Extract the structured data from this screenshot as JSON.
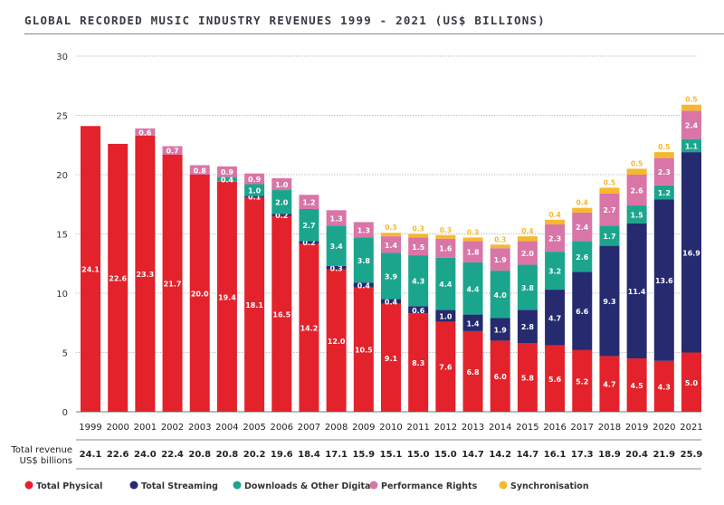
{
  "chart_data": {
    "type": "bar",
    "stacked": true,
    "title": "GLOBAL RECORDED MUSIC INDUSTRY REVENUES 1999 - 2021 (US$ BILLIONS)",
    "ylim": [
      0,
      30
    ],
    "yticks": [
      0,
      5,
      10,
      15,
      20,
      25,
      30
    ],
    "grid": true,
    "legend_position": "bottom",
    "categories": [
      "1999",
      "2000",
      "2001",
      "2002",
      "2003",
      "2004",
      "2005",
      "2006",
      "2007",
      "2008",
      "2009",
      "2010",
      "2011",
      "2012",
      "2013",
      "2014",
      "2015",
      "2016",
      "2017",
      "2018",
      "2019",
      "2020",
      "2021"
    ],
    "series": [
      {
        "name": "Total Physical",
        "color": "#e3222b",
        "label_color": "#ffffff",
        "values": [
          24.1,
          22.6,
          23.3,
          21.7,
          20.0,
          19.4,
          18.1,
          16.5,
          14.2,
          12.0,
          10.5,
          9.1,
          8.3,
          7.6,
          6.8,
          6.0,
          5.8,
          5.6,
          5.2,
          4.7,
          4.5,
          4.3,
          5.0
        ]
      },
      {
        "name": "Total Streaming",
        "color": "#262a6e",
        "label_color": "#ffffff",
        "values": [
          0,
          0,
          0,
          0,
          0,
          0,
          0.1,
          0.2,
          0.2,
          0.3,
          0.4,
          0.4,
          0.6,
          1.0,
          1.4,
          1.9,
          2.8,
          4.7,
          6.6,
          9.3,
          11.4,
          13.6,
          16.9
        ]
      },
      {
        "name": "Downloads & Other Digital",
        "color": "#1ba58d",
        "label_color": "#ffffff",
        "values": [
          0,
          0,
          0,
          0,
          0,
          0.4,
          1.0,
          2.0,
          2.7,
          3.4,
          3.8,
          3.9,
          4.3,
          4.4,
          4.4,
          4.0,
          3.8,
          3.2,
          2.6,
          1.7,
          1.5,
          1.2,
          1.1
        ]
      },
      {
        "name": "Performance Rights",
        "color": "#d975a7",
        "label_color": "#ffffff",
        "values": [
          0,
          0,
          0.6,
          0.7,
          0.8,
          0.9,
          0.9,
          1.0,
          1.2,
          1.3,
          1.3,
          1.4,
          1.5,
          1.6,
          1.8,
          1.9,
          2.0,
          2.3,
          2.4,
          2.7,
          2.6,
          2.3,
          2.4
        ]
      },
      {
        "name": "Synchronisation",
        "color": "#f6b82f",
        "label_color": "#f6b82f",
        "values": [
          0,
          0,
          0,
          0,
          0,
          0,
          0,
          0,
          0,
          0,
          0,
          0.3,
          0.3,
          0.3,
          0.3,
          0.3,
          0.4,
          0.4,
          0.4,
          0.5,
          0.5,
          0.5,
          0.5
        ]
      }
    ],
    "totals_label": [
      "Total revenue",
      "US$ billions"
    ],
    "totals": [
      "24.1",
      "22.6",
      "24.0",
      "22.4",
      "20.8",
      "20.8",
      "20.2",
      "19.6",
      "18.4",
      "17.1",
      "15.9",
      "15.1",
      "15.0",
      "15.0",
      "14.7",
      "14.2",
      "14.7",
      "16.1",
      "17.3",
      "18.9",
      "20.4",
      "21.9",
      "25.9"
    ]
  }
}
